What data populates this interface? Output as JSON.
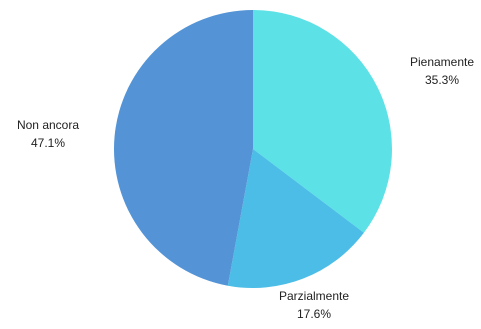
{
  "chart_data": {
    "type": "pie",
    "title": "",
    "slices": [
      {
        "label": "Pienamente",
        "value": 35.3,
        "value_label": "35.3%",
        "color": "#5ce1e6"
      },
      {
        "label": "Parzialmente",
        "value": 17.6,
        "value_label": "17.6%",
        "color": "#4bbde7"
      },
      {
        "label": "Non ancora",
        "value": 47.1,
        "value_label": "47.1%",
        "color": "#5494d6"
      }
    ],
    "start_angle_deg": 0,
    "direction": "clockwise",
    "legend": "none",
    "labels": "outside"
  }
}
